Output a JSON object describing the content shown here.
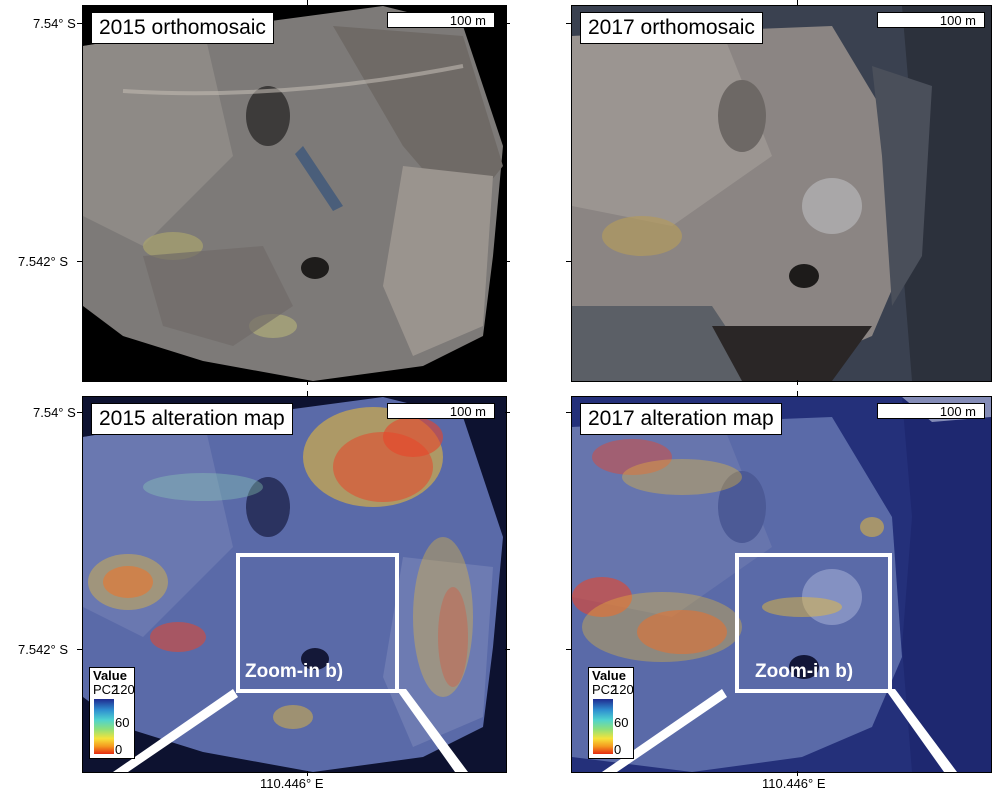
{
  "panels": [
    {
      "title": "2015 orthomosaic",
      "scale_label": "100 m"
    },
    {
      "title": "2017 orthomosaic",
      "scale_label": "100 m"
    },
    {
      "title": "2015 alteration map",
      "scale_label": "100 m",
      "zoom_label": "Zoom-in b)",
      "legend": {
        "title": "Value",
        "subtitle": "PC2",
        "ticks": [
          "120",
          "60",
          "0"
        ]
      }
    },
    {
      "title": "2017 alteration map",
      "scale_label": "100 m",
      "zoom_label": "Zoom-in b)",
      "legend": {
        "title": "Value",
        "subtitle": "PC2",
        "ticks": [
          "120",
          "60",
          "0"
        ]
      }
    }
  ],
  "axes": {
    "lat_top": "7.54° S",
    "lat_bottom": "7.542° S",
    "lon": "110.446° E"
  },
  "colors": {
    "ortho_rock": "#7d7a78",
    "map_base": "#5a6aa8",
    "alteration_high": "#e8452a",
    "alteration_mid": "#f2c030",
    "frame": "#000000",
    "zoom_box": "#ffffff"
  }
}
